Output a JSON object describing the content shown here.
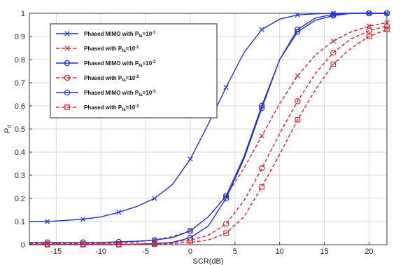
{
  "chart_data": {
    "type": "line",
    "xlabel": "SCR(dB)",
    "ylabel": "P",
    "ylabel_subscript": "d",
    "xlim": [
      -18,
      22
    ],
    "ylim": [
      0,
      1
    ],
    "x_ticks": [
      "-15",
      "-10",
      "-5",
      "0",
      "5",
      "10",
      "15",
      "20"
    ],
    "y_ticks": [
      "0",
      "0.1",
      "0.2",
      "0.3",
      "0.4",
      "0.5",
      "0.6",
      "0.7",
      "0.8",
      "0.9",
      "1"
    ],
    "grid": true,
    "legend_position": "top-left",
    "x": [
      -18,
      -16,
      -14,
      -12,
      -10,
      -8,
      -6,
      -4,
      -2,
      0,
      2,
      4,
      6,
      8,
      10,
      12,
      14,
      16,
      18,
      20,
      22
    ],
    "series": [
      {
        "legend_main": "Phased MIMO with P",
        "legend_sub": "fa",
        "legend_tail": "=10",
        "legend_exp": "-1",
        "color": "#1f2fd6",
        "linestyle": "solid",
        "marker": "x",
        "values": [
          0.1,
          0.1,
          0.105,
          0.11,
          0.12,
          0.14,
          0.165,
          0.2,
          0.26,
          0.37,
          0.52,
          0.68,
          0.83,
          0.93,
          0.975,
          0.993,
          0.998,
          1.0,
          1.0,
          1.0,
          1.0
        ]
      },
      {
        "legend_main": "Phased with P",
        "legend_sub": "fa",
        "legend_tail": "=10",
        "legend_exp": "-1",
        "color": "#e0202a",
        "linestyle": "dashed",
        "marker": "x",
        "values": [
          0.005,
          0.005,
          0.005,
          0.005,
          0.006,
          0.008,
          0.012,
          0.02,
          0.035,
          0.06,
          0.12,
          0.21,
          0.33,
          0.47,
          0.61,
          0.73,
          0.82,
          0.88,
          0.92,
          0.945,
          0.96
        ]
      },
      {
        "legend_main": "Phased MIMO with P",
        "legend_sub": "fa",
        "legend_tail": "=10",
        "legend_exp": "-2",
        "color": "#1f2fd6",
        "linestyle": "solid",
        "marker": "o",
        "values": [
          0.01,
          0.01,
          0.01,
          0.01,
          0.01,
          0.012,
          0.015,
          0.02,
          0.03,
          0.06,
          0.12,
          0.21,
          0.38,
          0.6,
          0.8,
          0.93,
          0.98,
          0.995,
          1.0,
          1.0,
          1.0
        ]
      },
      {
        "legend_main": "Phased with P",
        "legend_sub": "fa",
        "legend_tail": "=10",
        "legend_exp": "-2",
        "color": "#e0202a",
        "linestyle": "dashed",
        "marker": "o",
        "values": [
          0.002,
          0.002,
          0.002,
          0.002,
          0.002,
          0.002,
          0.003,
          0.005,
          0.01,
          0.02,
          0.04,
          0.09,
          0.19,
          0.33,
          0.48,
          0.62,
          0.74,
          0.83,
          0.89,
          0.925,
          0.945
        ]
      },
      {
        "legend_main": "Phased MIMO with P",
        "legend_sub": "fa",
        "legend_tail": "=10",
        "legend_exp": "-3",
        "color": "#1f2fd6",
        "linestyle": "solid",
        "marker": "o",
        "values": [
          0.001,
          0.001,
          0.001,
          0.001,
          0.001,
          0.001,
          0.002,
          0.004,
          0.01,
          0.03,
          0.08,
          0.2,
          0.37,
          0.59,
          0.8,
          0.92,
          0.97,
          0.99,
          1.0,
          1.0,
          1.0
        ]
      },
      {
        "legend_main": "Phased with P",
        "legend_sub": "fa",
        "legend_tail": "=10",
        "legend_exp": "-3",
        "color": "#e0202a",
        "linestyle": "dashed",
        "marker": "s",
        "values": [
          0.0,
          0.0,
          0.0,
          0.0,
          0.0,
          0.0,
          0.001,
          0.002,
          0.005,
          0.01,
          0.02,
          0.05,
          0.12,
          0.25,
          0.39,
          0.54,
          0.67,
          0.78,
          0.85,
          0.9,
          0.93
        ]
      }
    ]
  }
}
